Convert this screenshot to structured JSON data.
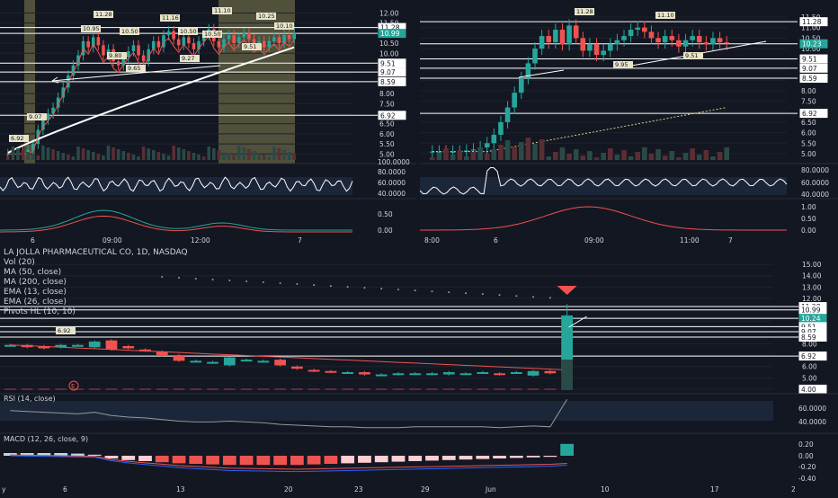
{
  "colors": {
    "background": "#131722",
    "up": "#26a69a",
    "down": "#ef5350",
    "grid": "#1e222d",
    "axis_text": "#d1d4dc",
    "session_band": "#5d5a40",
    "price_tag": "#26a69a"
  },
  "panels": {
    "top_left": {
      "price_ticks": [
        "12.00",
        "11.50",
        "11.00",
        "10.50",
        "10.00",
        "9.50",
        "9.00",
        "8.50",
        "8.00",
        "7.50",
        "7.00",
        "6.50",
        "6.00",
        "5.50",
        "5.00"
      ],
      "level_tags": [
        "11.28",
        "10.99",
        "9.51",
        "9.07",
        "8.59",
        "6.92"
      ],
      "osc_ticks": [
        "100.0000",
        "80.0000",
        "60.0000",
        "40.0000"
      ],
      "macd_ticks": [
        "0.50",
        "0.00"
      ],
      "time_labels": [
        "6",
        "09:00",
        "12:00",
        "7"
      ],
      "pivot_labels": [
        "11.28",
        "11.16",
        "11.10",
        "10.95",
        "10.50",
        "10.50",
        "10.50",
        "10.25",
        "10.10",
        "9.80",
        "9.65",
        "9.51",
        "9.27",
        "9.07",
        "6.92"
      ]
    },
    "top_right": {
      "price_ticks": [
        "11.50",
        "11.00",
        "10.50",
        "10.00",
        "9.50",
        "9.00",
        "8.50",
        "8.00",
        "7.50",
        "7.00",
        "6.50",
        "6.00",
        "5.50",
        "5.00"
      ],
      "level_tags": [
        "11.28",
        "10.23",
        "9.51",
        "9.07",
        "8.59",
        "6.92"
      ],
      "osc_ticks": [
        "80.0000",
        "60.0000",
        "40.0000"
      ],
      "macd_ticks": [
        "1.00",
        "0.50",
        "0.00"
      ],
      "time_labels": [
        "8:00",
        "6",
        "09:00",
        "11:00",
        "7"
      ],
      "pivot_labels": [
        "11.28",
        "11.10",
        "9.95",
        "9.51"
      ]
    },
    "bottom": {
      "header": {
        "title": "LA JOLLA PHARMACEUTICAL CO, 1D, NASDAQ",
        "indicators": [
          "Vol (20)",
          "MA (50, close)",
          "MA (200, close)",
          "EMA (13, close)",
          "EMA (26, close)",
          "Pivots HL (10, 10)"
        ]
      },
      "price_ticks": [
        "15.00",
        "14.00",
        "13.00",
        "12.00",
        "11.00",
        "10.00",
        "9.00",
        "8.00",
        "7.00",
        "6.00",
        "5.00",
        "4.00"
      ],
      "level_tags": [
        "11.28",
        "10.99",
        "10.24",
        "9.51",
        "9.07",
        "8.59",
        "6.92",
        "4.00"
      ],
      "rsi_label": "RSI (14, close)",
      "rsi_ticks": [
        "60.0000",
        "40.0000"
      ],
      "macd_label": "MACD (12, 26, close, 9)",
      "macd_ticks": [
        "0.20",
        "0.00",
        "-0.20",
        "-0.40"
      ],
      "time_labels": [
        "y",
        "6",
        "13",
        "20",
        "23",
        "29",
        "Jun",
        "10",
        "17",
        "2"
      ],
      "pivot_label": "6.92",
      "earnings_marker": "E"
    }
  },
  "chart_data": [
    {
      "type": "candlestick",
      "name": "top_left_intraday",
      "ylim": [
        4.7,
        12.2
      ],
      "candles_close": [
        5.0,
        5.05,
        5.1,
        5.05,
        5.2,
        5.5,
        6.2,
        6.7,
        7.0,
        7.3,
        7.8,
        8.3,
        8.9,
        9.4,
        9.9,
        10.6,
        10.3,
        10.8,
        10.4,
        9.9,
        10.2,
        9.6,
        9.4,
        9.8,
        10.1,
        10.4,
        9.9,
        9.6,
        10.2,
        10.6,
        10.3,
        10.9,
        11.1,
        10.7,
        10.4,
        10.8,
        10.5,
        10.2,
        10.6,
        10.9,
        11.2,
        10.6,
        10.3,
        10.7,
        10.9,
        10.5,
        10.8,
        11.0,
        10.7,
        10.4,
        10.6,
        10.3,
        10.6,
        10.8,
        10.5,
        10.9,
        10.7,
        10.99
      ],
      "ma_slow_start": 5.05,
      "ma_slow_end": 10.3,
      "levels": [
        11.28,
        10.99,
        9.51,
        9.07,
        8.59,
        6.92
      ]
    },
    {
      "type": "candlestick",
      "name": "top_right_intraday",
      "ylim": [
        4.7,
        11.8
      ],
      "candles_close": [
        5.1,
        5.1,
        5.05,
        5.1,
        5.1,
        5.15,
        5.2,
        5.3,
        5.5,
        5.9,
        6.5,
        7.2,
        7.9,
        8.6,
        9.3,
        10.0,
        10.6,
        10.3,
        10.9,
        10.2,
        11.1,
        10.5,
        9.9,
        10.2,
        9.7,
        9.9,
        10.2,
        10.4,
        10.6,
        10.9,
        11.0,
        10.8,
        10.5,
        10.3,
        10.6,
        10.4,
        10.1,
        10.4,
        10.6,
        10.3,
        10.2,
        10.5,
        10.3,
        10.23
      ],
      "levels": [
        11.28,
        10.23,
        9.51,
        9.07,
        8.59,
        6.92
      ]
    },
    {
      "type": "candlestick",
      "name": "bottom_daily",
      "ylim": [
        3.6,
        15.8
      ],
      "candles": [
        {
          "o": 7.9,
          "c": 7.9
        },
        {
          "o": 7.9,
          "c": 7.7
        },
        {
          "o": 7.8,
          "c": 7.6
        },
        {
          "o": 7.7,
          "c": 7.9
        },
        {
          "o": 7.9,
          "c": 7.9
        },
        {
          "o": 7.7,
          "c": 8.2
        },
        {
          "o": 8.3,
          "c": 7.5
        },
        {
          "o": 7.8,
          "c": 7.6
        },
        {
          "o": 7.5,
          "c": 7.4
        },
        {
          "o": 7.3,
          "c": 7.0
        },
        {
          "o": 7.0,
          "c": 6.5
        },
        {
          "o": 6.5,
          "c": 6.5
        },
        {
          "o": 6.4,
          "c": 6.4
        },
        {
          "o": 6.1,
          "c": 6.8
        },
        {
          "o": 6.6,
          "c": 6.6
        },
        {
          "o": 6.5,
          "c": 6.5
        },
        {
          "o": 6.6,
          "c": 6.1
        },
        {
          "o": 6.0,
          "c": 5.8
        },
        {
          "o": 5.7,
          "c": 5.6
        },
        {
          "o": 5.6,
          "c": 5.5
        },
        {
          "o": 5.5,
          "c": 5.5
        },
        {
          "o": 5.5,
          "c": 5.3
        },
        {
          "o": 5.3,
          "c": 5.3
        },
        {
          "o": 5.3,
          "c": 5.4
        },
        {
          "o": 5.4,
          "c": 5.4
        },
        {
          "o": 5.4,
          "c": 5.4
        },
        {
          "o": 5.3,
          "c": 5.5
        },
        {
          "o": 5.4,
          "c": 5.4
        },
        {
          "o": 5.5,
          "c": 5.5
        },
        {
          "o": 5.4,
          "c": 5.3
        },
        {
          "o": 5.5,
          "c": 5.5
        },
        {
          "o": 5.2,
          "c": 5.6
        },
        {
          "o": 5.6,
          "c": 5.4
        },
        {
          "o": 5.4,
          "c": 10.5
        }
      ],
      "levels": [
        11.28,
        10.99,
        10.24,
        9.51,
        9.07,
        8.59,
        6.92
      ],
      "rsi": [
        58,
        57,
        56,
        55,
        54,
        56,
        52,
        50,
        49,
        47,
        45,
        44,
        44,
        45,
        44,
        43,
        41,
        40,
        39,
        38,
        38,
        37,
        37,
        37,
        38,
        38,
        38,
        38,
        38,
        37,
        38,
        39,
        38,
        72
      ],
      "macd_hist": [
        0.05,
        0.05,
        0.05,
        0.05,
        0.04,
        0.02,
        -0.05,
        -0.08,
        -0.1,
        -0.12,
        -0.14,
        -0.15,
        -0.16,
        -0.17,
        -0.17,
        -0.17,
        -0.17,
        -0.17,
        -0.16,
        -0.15,
        -0.14,
        -0.13,
        -0.12,
        -0.11,
        -0.1,
        -0.09,
        -0.08,
        -0.07,
        -0.06,
        -0.05,
        -0.04,
        -0.03,
        -0.02,
        0.22
      ]
    }
  ]
}
